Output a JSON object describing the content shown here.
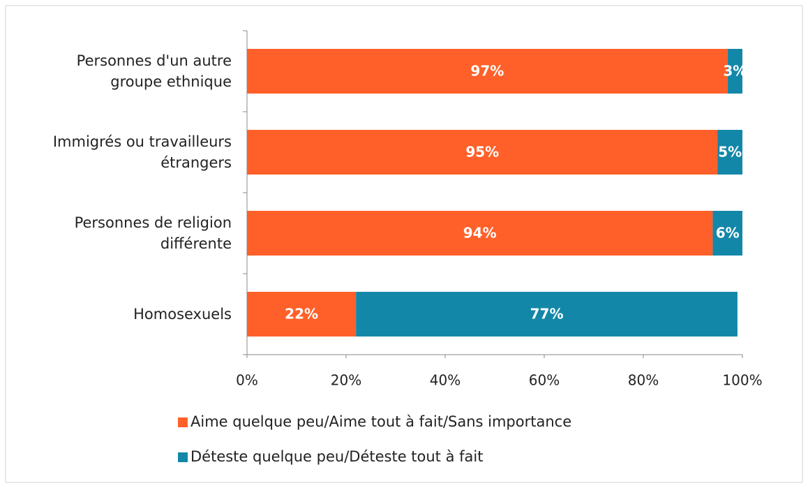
{
  "chart_data": {
    "type": "stacked-bar-horizontal",
    "categories": [
      "Personnes d'un autre groupe ethnique",
      "Immigrés ou travailleurs étrangers",
      "Personnes de religion différente",
      "Homosexuels"
    ],
    "series": [
      {
        "name": "Aime quelque peu/Aime tout à fait/Sans importance",
        "color": "#ff6029",
        "values": [
          97,
          95,
          94,
          22
        ],
        "value_labels": [
          "97%",
          "95%",
          "94%",
          "22%"
        ]
      },
      {
        "name": "Déteste quelque peu/Déteste tout à fait",
        "color": "#1387a8",
        "values": [
          3,
          5,
          6,
          77
        ],
        "value_labels": [
          "3%",
          "5%",
          "6%",
          "77%"
        ]
      }
    ],
    "xlim": [
      0,
      100
    ],
    "xticks": [
      {
        "value": 0,
        "label": "0%"
      },
      {
        "value": 20,
        "label": "20%"
      },
      {
        "value": 40,
        "label": "40%"
      },
      {
        "value": 60,
        "label": "60%"
      },
      {
        "value": 80,
        "label": "80%"
      },
      {
        "value": 100,
        "label": "100%"
      }
    ],
    "grid": false
  }
}
